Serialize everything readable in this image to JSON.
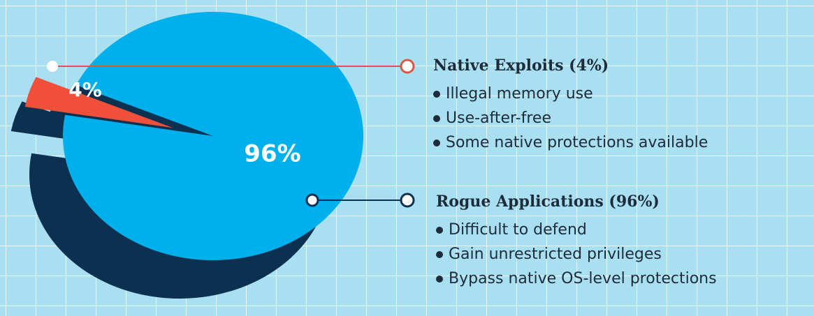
{
  "chart_data": {
    "type": "pie",
    "categories": [
      "Native Exploits (4%)",
      "Rogue Applications (96%)"
    ],
    "values": [
      4,
      96
    ],
    "value_labels": [
      "4%",
      "96%"
    ],
    "colors": [
      "#f0503a",
      "#00b0ec"
    ],
    "details": [
      [
        "Illegal memory use",
        "Use-after-free",
        "Some native protections available"
      ],
      [
        "Difficult to defend",
        "Gain unrestricted privileges",
        "Bypass native OS-level protections"
      ]
    ]
  }
}
